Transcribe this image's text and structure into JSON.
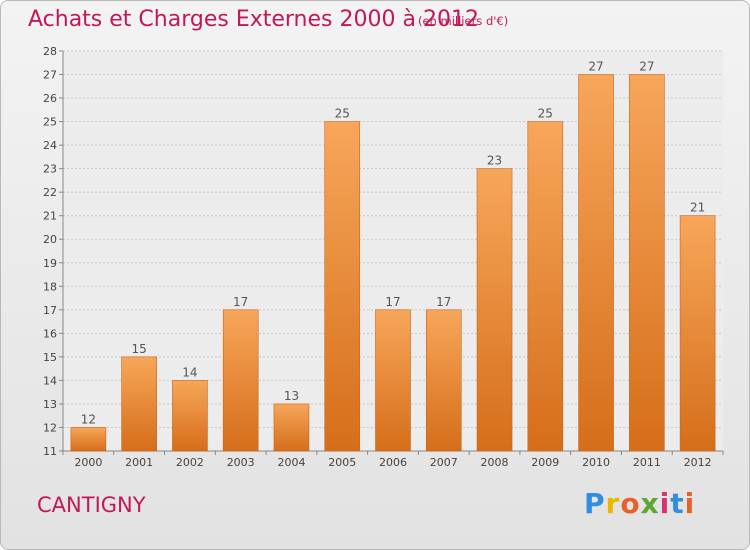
{
  "header": {
    "title": "Achats et Charges Externes 2000 à 2012",
    "subtitle": "(en milliers d'€)"
  },
  "footer": {
    "place": "CANTIGNY",
    "logo": [
      "P",
      "r",
      "o",
      "x",
      "i",
      "t",
      "i"
    ]
  },
  "colors": {
    "bar_top": "#f7a65a",
    "bar_bottom": "#d56e1a",
    "title": "#c2185b",
    "grid": "#c8c8c8"
  },
  "chart_data": {
    "type": "bar",
    "categories": [
      "2000",
      "2001",
      "2002",
      "2003",
      "2004",
      "2005",
      "2006",
      "2007",
      "2008",
      "2009",
      "2010",
      "2011",
      "2012"
    ],
    "values": [
      12,
      15,
      14,
      17,
      13,
      25,
      17,
      17,
      23,
      25,
      27,
      27,
      21
    ],
    "ylim": [
      11,
      28
    ],
    "yticks": [
      11,
      12,
      13,
      14,
      15,
      16,
      17,
      18,
      19,
      20,
      21,
      22,
      23,
      24,
      25,
      26,
      27,
      28
    ],
    "grid": true,
    "data_labels": true
  }
}
